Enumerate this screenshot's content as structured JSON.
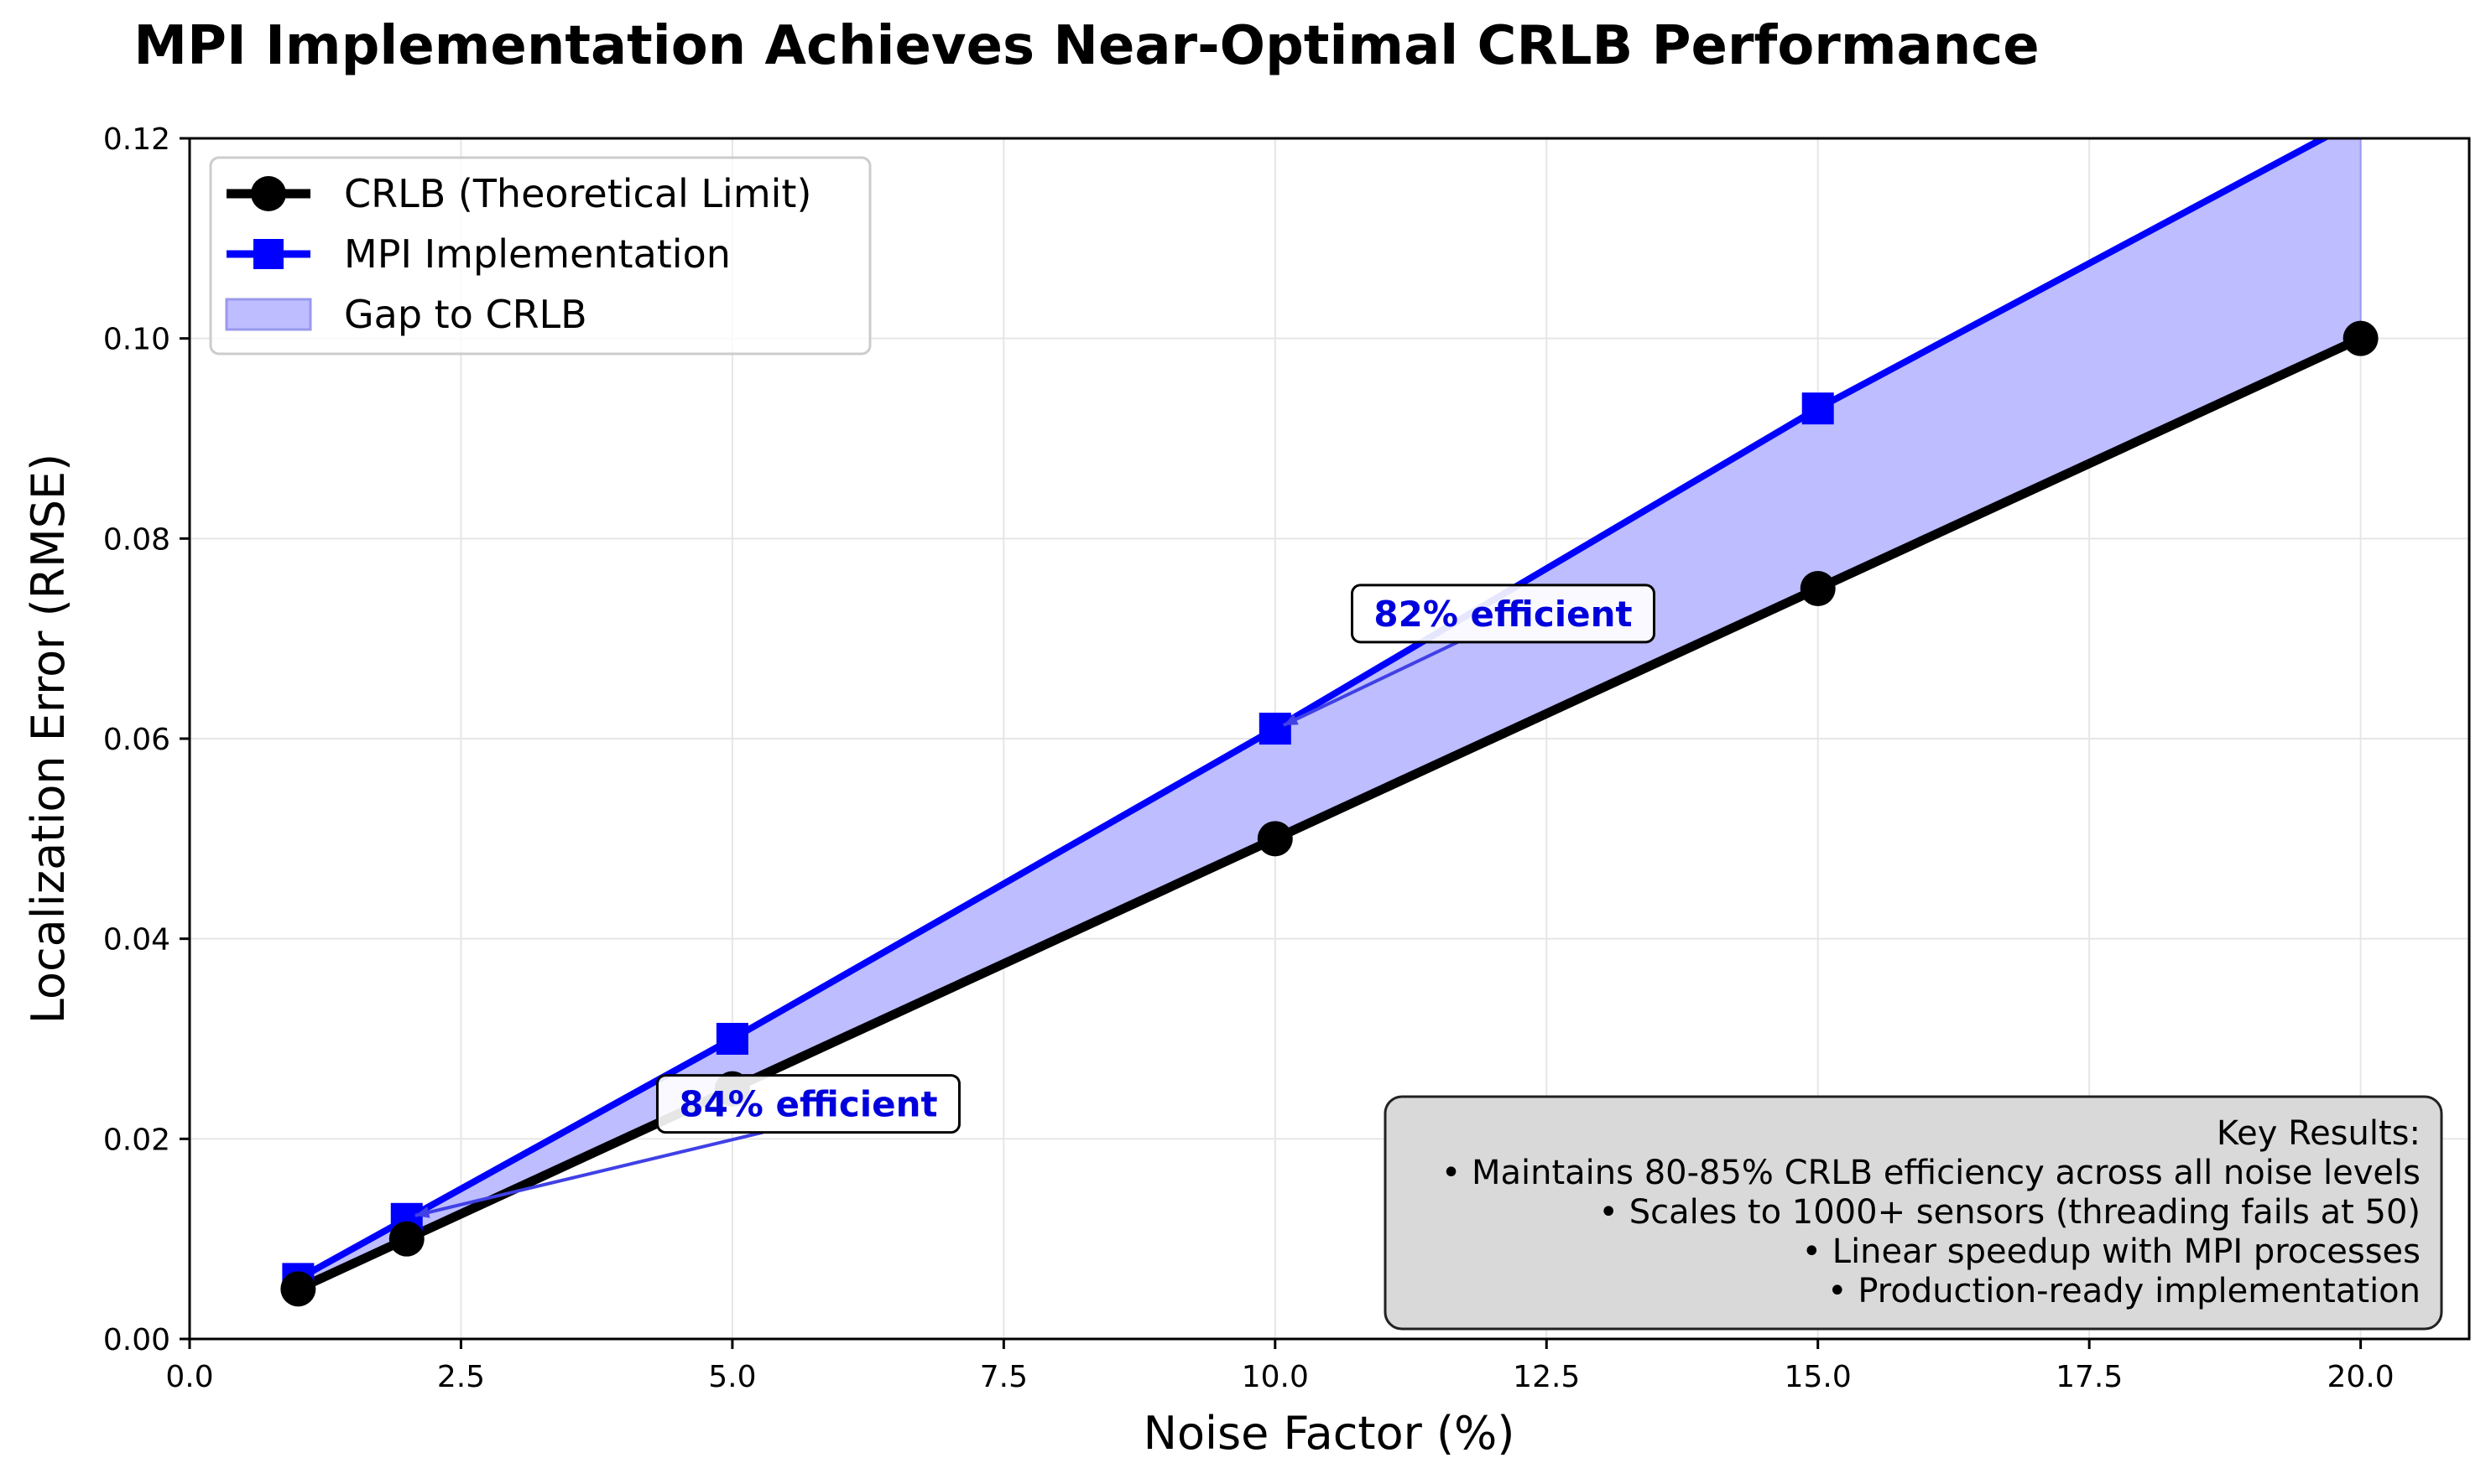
{
  "chart_data": {
    "type": "line",
    "title": "MPI Implementation Achieves Near-Optimal CRLB Performance",
    "xlabel": "Noise Factor (%)",
    "ylabel": "Localization Error (RMSE)",
    "xlim": [
      0,
      21
    ],
    "ylim": [
      0,
      0.12
    ],
    "xticks": [
      "0.0",
      "2.5",
      "5.0",
      "7.5",
      "10.0",
      "12.5",
      "15.0",
      "17.5",
      "20.0"
    ],
    "yticks": [
      "0.00",
      "0.02",
      "0.04",
      "0.06",
      "0.08",
      "0.10",
      "0.12"
    ],
    "xtick_values": [
      0,
      2.5,
      5,
      7.5,
      10,
      12.5,
      15,
      17.5,
      20
    ],
    "ytick_values": [
      0,
      0.02,
      0.04,
      0.06,
      0.08,
      0.1,
      0.12
    ],
    "grid": true,
    "legend_position": "top-left",
    "x": [
      1,
      2,
      5,
      10,
      15,
      20
    ],
    "series": [
      {
        "name": "CRLB (Theoretical Limit)",
        "values": [
          0.005,
          0.01,
          0.025,
          0.05,
          0.075,
          0.1
        ],
        "color": "#000000",
        "marker": "circle"
      },
      {
        "name": "MPI Implementation",
        "values": [
          0.006,
          0.012,
          0.03,
          0.061,
          0.093,
          0.122
        ],
        "color": "#0000ff",
        "marker": "square"
      }
    ],
    "fill_label": "Gap to CRLB",
    "fill_color": "#bdbdff",
    "annotations": [
      {
        "text": "84% efficient",
        "point": [
          2,
          0.012
        ],
        "text_at": [
          5.7,
          0.0235
        ]
      },
      {
        "text": "82% efficient",
        "point": [
          10,
          0.061
        ],
        "text_at": [
          12.1,
          0.0725
        ]
      }
    ],
    "key_results": {
      "title": "Key Results:",
      "lines": [
        "• Maintains 80-85% CRLB efficiency across all noise levels",
        "• Scales to 1000+ sensors (threading fails at 50)",
        "• Linear speedup with MPI processes",
        "• Production-ready implementation"
      ]
    }
  }
}
